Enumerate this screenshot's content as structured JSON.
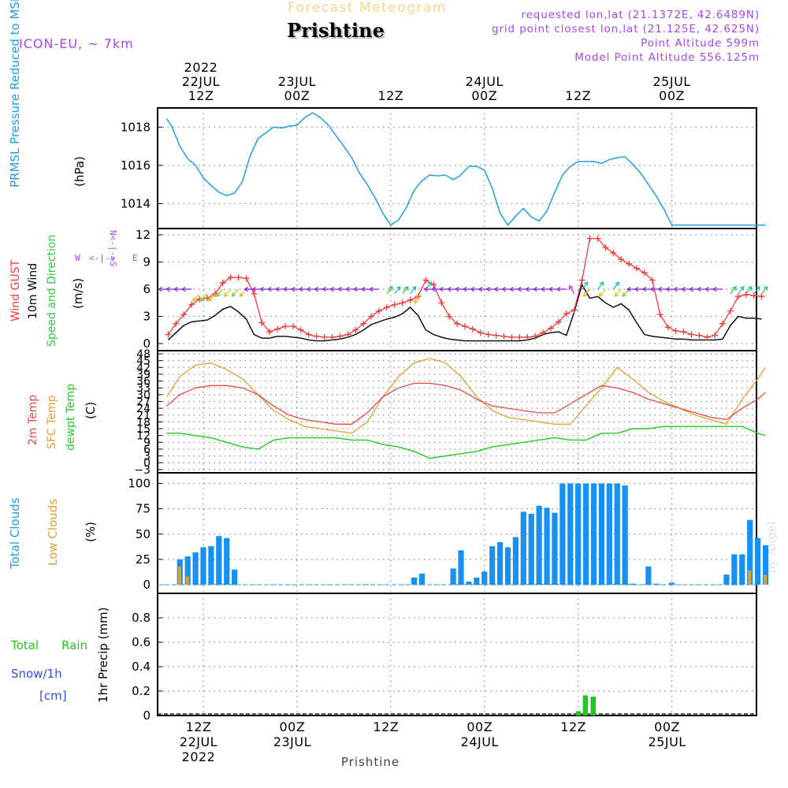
{
  "header": {
    "product": "Forecast Meteogram",
    "location": "Prishtine",
    "model": "ICON-EU, ~ 7km",
    "requested": "requested lon,lat (21.1372E, 42.6489N)",
    "grid_point": "grid point closest lon,lat (21.125E, 42.625N)",
    "point_alt": "Point Altitude 599m",
    "model_alt": "Model Point Altitude 556.125m",
    "footer_location": "Prishtine",
    "credit": "by Angel"
  },
  "colors": {
    "pressure": "#1ea0e6",
    "gust": "#f03c3c",
    "wind": "#000000",
    "direction": "#2ecc40",
    "temp2m": "#e84848",
    "sfc": "#e0a030",
    "dewpt": "#22cc22",
    "total_cloud": "#1890f0",
    "low_cloud": "#e0a030",
    "rain": "#22c822",
    "snow": "#3050e0",
    "purple": "#aa44ee"
  },
  "time_axis": {
    "top": [
      {
        "h": 12,
        "lines": [
          "2022",
          "22JUL",
          "12Z"
        ]
      },
      {
        "h": 24,
        "lines": [
          "23JUL",
          "00Z"
        ]
      },
      {
        "h": 36,
        "lines": [
          "12Z"
        ]
      },
      {
        "h": 48,
        "lines": [
          "24JUL",
          "00Z"
        ]
      },
      {
        "h": 60,
        "lines": [
          "12Z"
        ]
      },
      {
        "h": 72,
        "lines": [
          "25JUL",
          "00Z"
        ]
      }
    ],
    "bottom": [
      {
        "h": 12,
        "lines": [
          "12Z",
          "22JUL",
          "2022"
        ]
      },
      {
        "h": 24,
        "lines": [
          "00Z",
          "23JUL"
        ]
      },
      {
        "h": 36,
        "lines": [
          "12Z"
        ]
      },
      {
        "h": 48,
        "lines": [
          "00Z",
          "24JUL"
        ]
      },
      {
        "h": 60,
        "lines": [
          "12Z"
        ]
      },
      {
        "h": 72,
        "lines": [
          "00Z",
          "25JUL"
        ]
      }
    ]
  },
  "chart_data": [
    {
      "type": "line",
      "title": "PRMSL Pressure Reduced to MSL",
      "ylabel": "(hPa)",
      "ylim": [
        1012.7,
        1019.0
      ],
      "yticks": [
        1014,
        1016,
        1018
      ],
      "x_hours": [
        7.3,
        8,
        9,
        10,
        11,
        12,
        13,
        14,
        15,
        16,
        17,
        18,
        19,
        20,
        21,
        22,
        23,
        24,
        25,
        26,
        27,
        28,
        29,
        30,
        31,
        32,
        33,
        34,
        35,
        36,
        37,
        38,
        39,
        40,
        41,
        42,
        43,
        44,
        45,
        46,
        47,
        48,
        49,
        50,
        51,
        52,
        53,
        54,
        55,
        56,
        57,
        58,
        59,
        60,
        61,
        62,
        63,
        64,
        65,
        66,
        67,
        68,
        69,
        70,
        71,
        72,
        73,
        74,
        75,
        76,
        77,
        78,
        79,
        80,
        81,
        82,
        83,
        84
      ],
      "series": [
        {
          "name": "PRMSL",
          "values": [
            1018.45,
            1018.0,
            1017.0,
            1016.35,
            1016.0,
            1015.35,
            1014.95,
            1014.6,
            1014.42,
            1014.55,
            1015.15,
            1016.5,
            1017.4,
            1017.7,
            1018.0,
            1017.95,
            1018.05,
            1018.1,
            1018.5,
            1018.75,
            1018.5,
            1018.1,
            1017.55,
            1017.0,
            1016.4,
            1015.6,
            1015.0,
            1014.3,
            1013.5,
            1012.88,
            1013.15,
            1013.8,
            1014.7,
            1015.2,
            1015.5,
            1015.45,
            1015.5,
            1015.25,
            1015.5,
            1015.95,
            1015.95,
            1015.75,
            1014.8,
            1013.5,
            1012.88,
            1013.35,
            1013.75,
            1013.3,
            1013.1,
            1013.6,
            1014.6,
            1015.5,
            1015.95,
            1016.2,
            1016.2,
            1016.2,
            1016.1,
            1016.3,
            1016.4,
            1016.45,
            1016.05,
            1015.6,
            1015.0,
            1014.4,
            1013.7,
            1012.88,
            1012.88,
            1012.88,
            1012.88,
            1012.88,
            1012.88,
            1012.88,
            1012.88,
            1012.88,
            1012.88,
            1012.88,
            1012.88,
            1012.88
          ]
        }
      ]
    },
    {
      "type": "line",
      "title": "Wind GUST / 10m Wind Speed and Direction",
      "ylabel": "(m/s)",
      "ylim": [
        -0.5,
        12.5
      ],
      "yticks": [
        0,
        3,
        6,
        9,
        12
      ],
      "compass": {
        "n": "N",
        "s": "S",
        "w": "W",
        "e": "E",
        "arrow": "<-|->"
      },
      "x_hours": [
        7.5,
        8.5,
        9.5,
        10.5,
        11.5,
        12.5,
        13.5,
        14.5,
        15.5,
        16.5,
        17.5,
        18.5,
        19.5,
        20.5,
        21.5,
        22.5,
        23.5,
        24.5,
        25.5,
        26.5,
        27.5,
        28.5,
        29.5,
        30.5,
        31.5,
        32.5,
        33.5,
        34.5,
        35.5,
        36.5,
        37.5,
        38.5,
        39.5,
        40.5,
        41.5,
        42.5,
        43.5,
        44.5,
        45.5,
        46.5,
        47.5,
        48.5,
        49.5,
        50.5,
        51.5,
        52.5,
        53.5,
        54.5,
        55.5,
        56.5,
        57.5,
        58.5,
        59.5,
        60.5,
        61.5,
        62.5,
        63.5,
        64.5,
        65.5,
        66.5,
        67.5,
        68.5,
        69.5,
        70.5,
        71.5,
        72.5,
        73.5,
        74.5,
        75.5,
        76.5,
        77.5,
        78.5,
        79.5,
        80.5,
        81.5,
        82.5,
        83.5
      ],
      "series": [
        {
          "name": "Wind GUST",
          "values": [
            1.0,
            2.2,
            3.2,
            4.3,
            4.9,
            5.0,
            5.5,
            6.7,
            7.3,
            7.3,
            7.2,
            5.5,
            2.3,
            1.3,
            1.6,
            1.9,
            1.9,
            1.5,
            1.0,
            0.8,
            0.7,
            0.7,
            0.8,
            1.0,
            1.5,
            2.2,
            3.0,
            3.6,
            4.0,
            4.3,
            4.5,
            4.8,
            5.2,
            7.0,
            6.5,
            4.5,
            3.0,
            2.2,
            1.9,
            1.6,
            1.2,
            1.0,
            0.9,
            0.8,
            0.7,
            0.7,
            0.7,
            0.8,
            1.2,
            1.7,
            2.4,
            3.3,
            3.7,
            7.0,
            11.6,
            11.6,
            10.6,
            10.0,
            9.3,
            8.8,
            8.3,
            7.8,
            7.0,
            3.2,
            1.8,
            1.4,
            1.3,
            1.0,
            0.9,
            0.7,
            0.9,
            2.2,
            3.6,
            5.2,
            5.4,
            5.3,
            5.2
          ]
        },
        {
          "name": "10m Wind",
          "values": [
            0.4,
            1.2,
            2.0,
            2.4,
            2.5,
            2.6,
            3.1,
            3.8,
            4.1,
            3.5,
            2.7,
            1.0,
            0.6,
            0.6,
            0.8,
            0.8,
            0.7,
            0.6,
            0.4,
            0.3,
            0.3,
            0.4,
            0.5,
            0.7,
            1.0,
            1.5,
            2.1,
            2.4,
            2.7,
            2.9,
            3.3,
            4.0,
            3.1,
            1.5,
            1.0,
            0.7,
            0.5,
            0.4,
            0.3,
            0.3,
            0.3,
            0.3,
            0.3,
            0.3,
            0.3,
            0.3,
            0.4,
            0.6,
            1.0,
            1.2,
            1.3,
            0.9,
            3.5,
            6.5,
            5.0,
            5.2,
            4.5,
            4.0,
            4.4,
            3.7,
            2.3,
            1.0,
            0.8,
            0.7,
            0.6,
            0.5,
            0.5,
            0.4,
            0.4,
            0.4,
            0.4,
            0.5,
            2.0,
            3.0,
            2.8,
            2.8,
            2.7
          ]
        },
        {
          "name": "Direction arrows (stage: 0=W,1=SW,2=NE,3=NW,4=N)",
          "values": [
            0,
            0,
            0,
            0,
            1,
            1,
            1,
            1,
            1,
            1,
            1,
            0,
            0,
            0,
            0,
            0,
            0,
            0,
            0,
            0,
            0,
            0,
            0,
            0,
            0,
            0,
            0,
            0,
            2,
            2,
            2,
            2,
            4,
            2,
            0,
            0,
            0,
            0,
            0,
            0,
            0,
            0,
            0,
            0,
            0,
            0,
            0,
            0,
            0,
            0,
            0,
            0,
            3,
            2,
            1,
            2,
            1,
            2,
            1,
            1,
            0,
            0,
            0,
            0,
            0,
            0,
            0,
            0,
            0,
            0,
            0,
            0,
            2,
            2,
            2,
            2,
            2
          ]
        }
      ]
    },
    {
      "type": "line",
      "title": "2m Temp / SFC Temp / dewpt Temp",
      "ylabel": "(C)",
      "ylim": [
        -3,
        48
      ],
      "yticks": [
        -3,
        0,
        3,
        6,
        9,
        12,
        15,
        18,
        21,
        24,
        27,
        30,
        33,
        36,
        39,
        42,
        45,
        48
      ],
      "x_hours": [
        7.3,
        9,
        11,
        13,
        15,
        17,
        19,
        21,
        23,
        25,
        27,
        29,
        31,
        33,
        35,
        37,
        39,
        41,
        43,
        45,
        47,
        49,
        51,
        53,
        55,
        57,
        59,
        61,
        63,
        65,
        67,
        69,
        71,
        73,
        75,
        77,
        79,
        81,
        83,
        84
      ],
      "series": [
        {
          "name": "2m Temp",
          "values": [
            25,
            30,
            33,
            34,
            34,
            33,
            30,
            25,
            21,
            19,
            18,
            17,
            17,
            22,
            29,
            33,
            35,
            35,
            34,
            32,
            28,
            25,
            24,
            23,
            22,
            22,
            26,
            30,
            34,
            33,
            31,
            28,
            26,
            24,
            22,
            20,
            19,
            24,
            28,
            31
          ]
        },
        {
          "name": "SFC Temp",
          "values": [
            29,
            38,
            43,
            44,
            41,
            37,
            30,
            23,
            19,
            16,
            15,
            14,
            13,
            18,
            29,
            38,
            44,
            46,
            44,
            38,
            29,
            23,
            20,
            19,
            18,
            17,
            17,
            25,
            33,
            42,
            37,
            31,
            27,
            24,
            21,
            19,
            17,
            28,
            37,
            42
          ]
        },
        {
          "name": "dewpt Temp",
          "values": [
            13,
            13,
            12,
            11,
            9,
            7,
            6,
            10,
            11,
            11,
            11,
            11,
            10,
            10,
            8,
            7,
            5,
            2,
            3,
            4,
            5,
            7,
            8,
            9,
            10,
            11,
            10,
            10,
            13,
            13,
            15,
            15,
            16,
            16,
            16,
            16,
            16,
            16,
            13,
            12
          ]
        }
      ]
    },
    {
      "type": "bar",
      "title": "Total Clouds / Low Clouds",
      "ylabel": "(%)",
      "ylim": [
        -8,
        104
      ],
      "yticks": [
        0,
        25,
        50,
        75,
        100
      ],
      "x_hours": [
        9,
        10,
        11,
        12,
        13,
        14,
        15,
        16,
        17,
        18,
        19,
        20,
        21,
        22,
        23,
        24,
        25,
        26,
        27,
        28,
        29,
        30,
        31,
        32,
        33,
        34,
        35,
        36,
        37,
        38,
        39,
        40,
        41,
        42,
        43,
        44,
        45,
        46,
        47,
        48,
        49,
        50,
        51,
        52,
        53,
        54,
        55,
        56,
        57,
        58,
        59,
        60,
        61,
        62,
        63,
        64,
        65,
        66,
        67,
        68,
        69,
        70,
        71,
        72,
        73,
        74,
        75,
        76,
        77,
        78,
        79,
        80,
        81,
        82,
        83,
        84
      ],
      "series": [
        {
          "name": "Total Clouds",
          "values": [
            25,
            28,
            32,
            37,
            38,
            48,
            46,
            15,
            0,
            0,
            0,
            0,
            0,
            0,
            0,
            0,
            0,
            0,
            0,
            0,
            0,
            0,
            0,
            0,
            0,
            0,
            0,
            0,
            0,
            0,
            7,
            11,
            0,
            0,
            0,
            16,
            34,
            3,
            7,
            13,
            38,
            42,
            37,
            47,
            72,
            70,
            78,
            76,
            71,
            100,
            100,
            100,
            100,
            100,
            100,
            100,
            100,
            98,
            1,
            0,
            18,
            1,
            0,
            2,
            0,
            0,
            0,
            0,
            0,
            0,
            10,
            30,
            30,
            64,
            46,
            39
          ]
        },
        {
          "name": "Low Clouds",
          "values": [
            18,
            8,
            0,
            0,
            0,
            0,
            0,
            0,
            0,
            0,
            0,
            0,
            0,
            0,
            0,
            0,
            0,
            0,
            0,
            0,
            0,
            0,
            0,
            0,
            0,
            0,
            0,
            0,
            0,
            0,
            0,
            0,
            0,
            0,
            0,
            0,
            0,
            0,
            0,
            0,
            0,
            0,
            0,
            0,
            0,
            0,
            0,
            0,
            0,
            0,
            0,
            0,
            0,
            0,
            0,
            0,
            0,
            0,
            0,
            0,
            0,
            0,
            0,
            0,
            0,
            0,
            0,
            0,
            0,
            0,
            0,
            0,
            0,
            14,
            0,
            10
          ]
        }
      ]
    },
    {
      "type": "bar",
      "title": "Total Rain / Snow/1h [cm]",
      "ylabel": "1hr Precip (mm)",
      "ylim": [
        0,
        1.0
      ],
      "yticks": [
        "0",
        "0.2",
        "0.4",
        "0.6",
        "0.8"
      ],
      "legend": {
        "total": "Total",
        "rain": "Rain",
        "snow": "Snow/1h",
        "unit": "[cm]"
      },
      "x_hours": [
        60,
        61,
        62
      ],
      "series": [
        {
          "name": "Rain",
          "values": [
            0.035,
            0.165,
            0.155
          ]
        },
        {
          "name": "Snow",
          "values": [
            0,
            0,
            0
          ]
        }
      ]
    }
  ]
}
